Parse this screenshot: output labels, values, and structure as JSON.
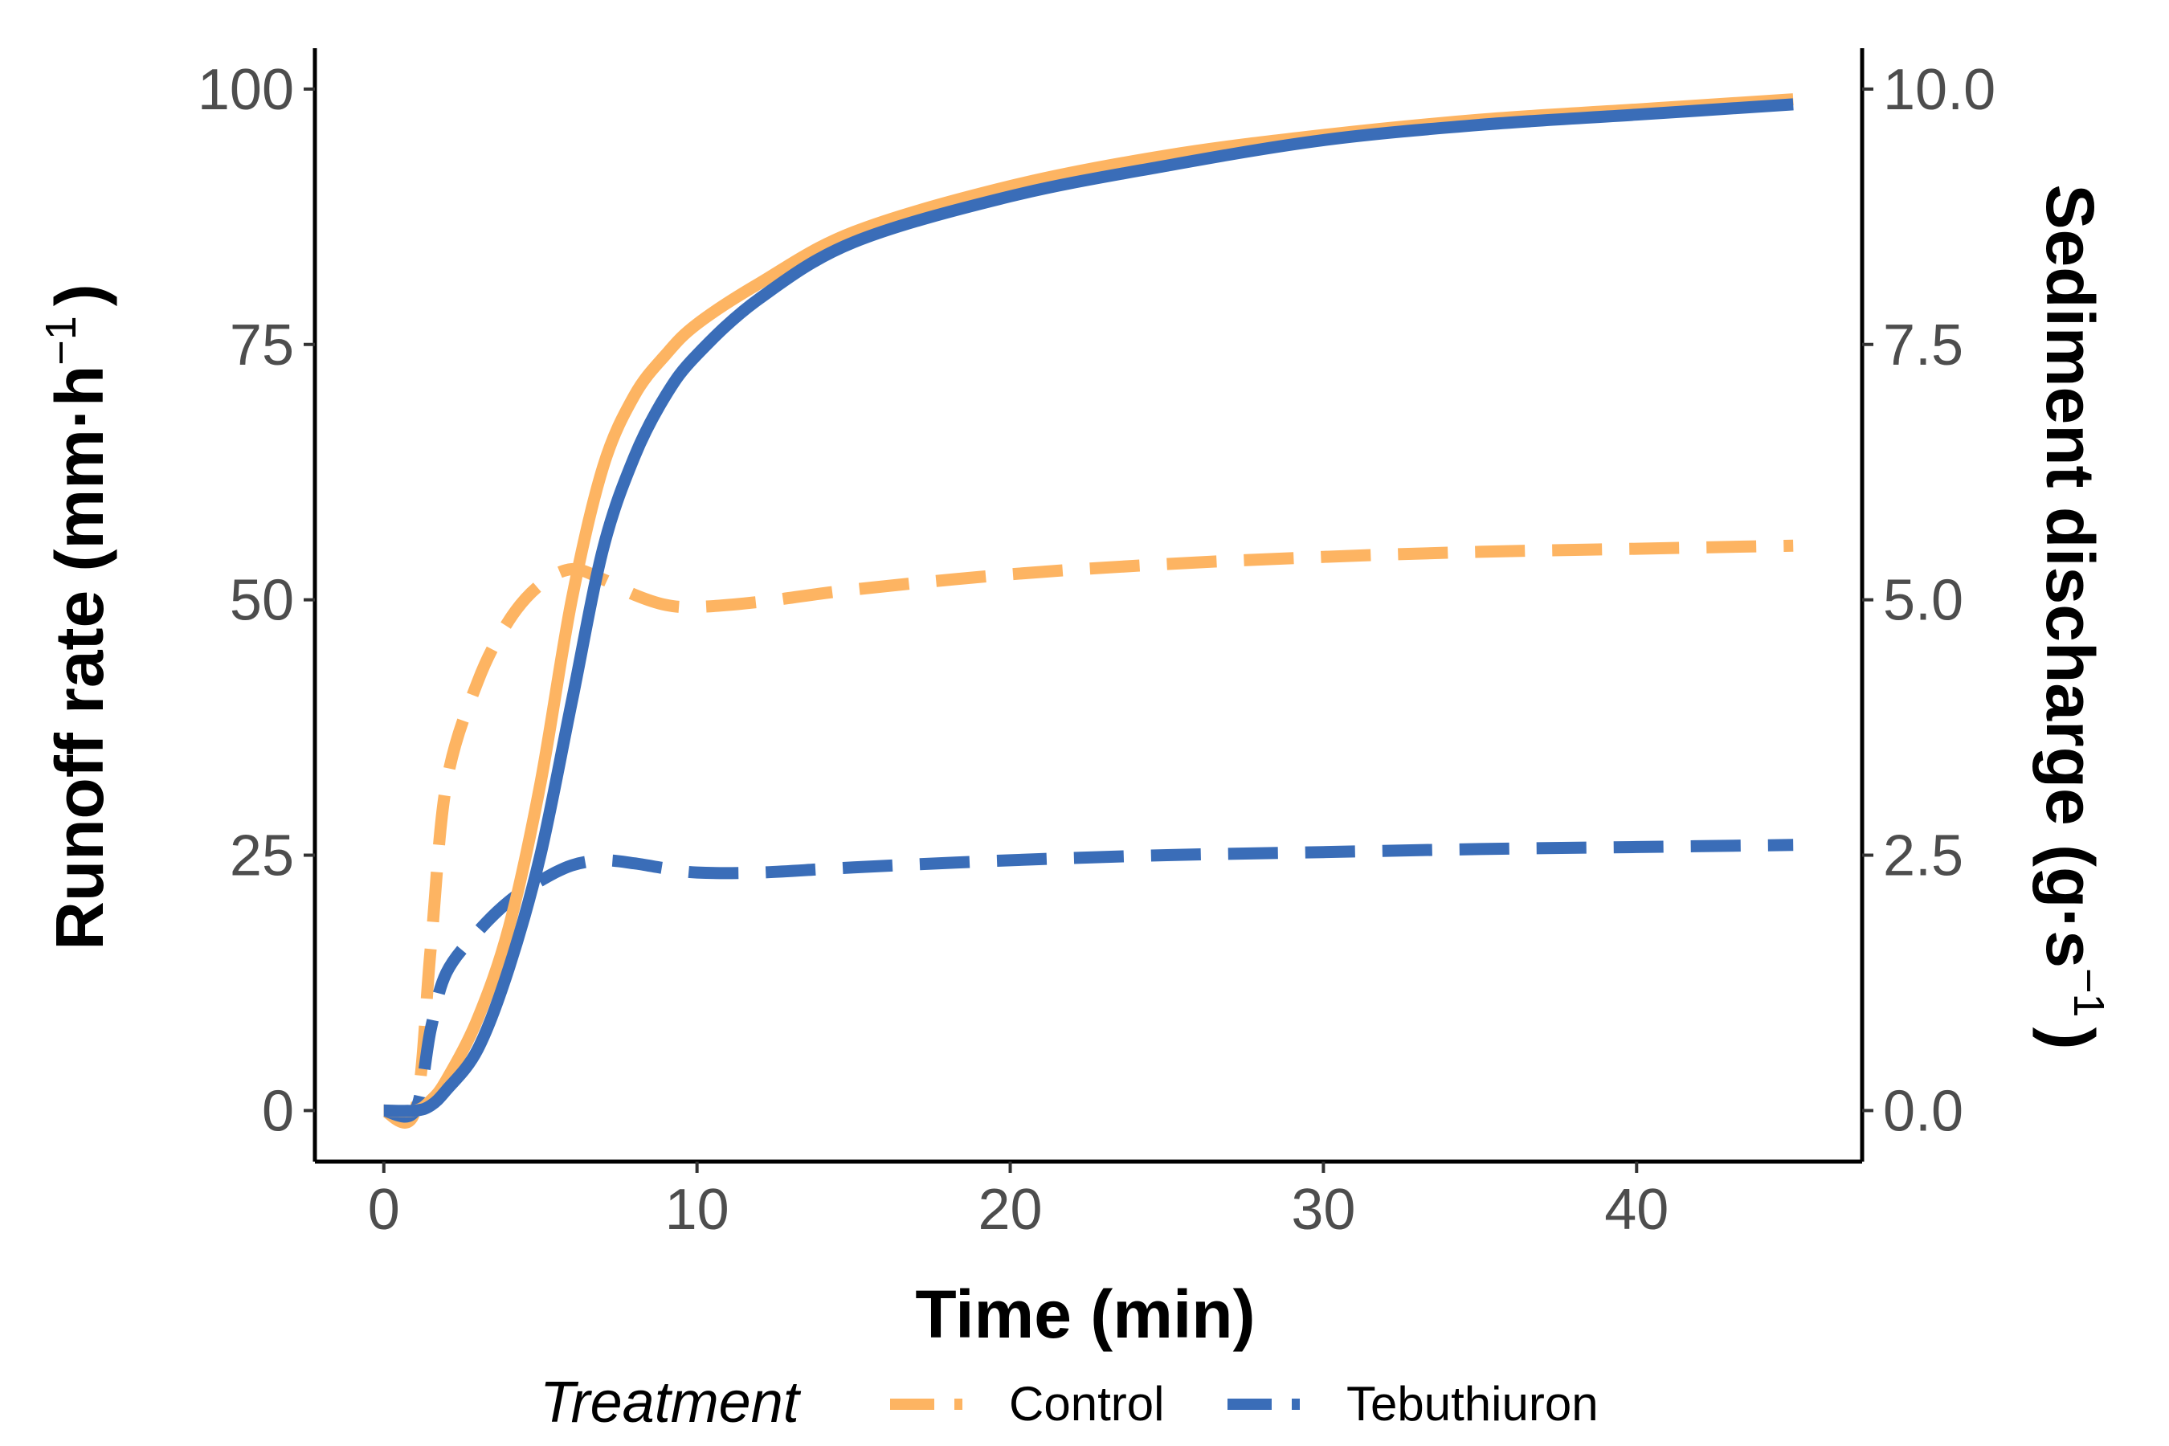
{
  "chart_data": {
    "type": "line",
    "xlabel": "Time (min)",
    "ylabel_left": {
      "main": "Runoff rate (mm·h",
      "sup": "−1",
      "close": ")"
    },
    "ylabel_right": {
      "main": "Sediment discharge (g·s",
      "sup": "−1",
      "close": ")"
    },
    "xlim": [
      -2.2,
      47.2
    ],
    "ylim_left": [
      -5,
      104
    ],
    "ylim_right": [
      -0.5,
      10.4
    ],
    "x_ticks": [
      0,
      10,
      20,
      30,
      40
    ],
    "y_left_ticks": [
      0,
      25,
      50,
      75,
      100
    ],
    "y_right_ticks": [
      0,
      2.5,
      5,
      7.5,
      10
    ],
    "y_right_tick_labels": [
      "0.0",
      "2.5",
      "5.0",
      "7.5",
      "10.0"
    ],
    "grid": false,
    "legend": {
      "title": "Treatment",
      "position": "bottom",
      "entries": [
        {
          "label": "Control",
          "color": "#FDB462"
        },
        {
          "label": "Tebuthiuron",
          "color": "#3A6DB8"
        }
      ]
    },
    "series": [
      {
        "name": "Control",
        "measure": "Runoff rate",
        "axis": "left",
        "style": "solid",
        "color": "#FDB462",
        "x": [
          0,
          1,
          1.5,
          2,
          3,
          4,
          5,
          6,
          7,
          8,
          9,
          10,
          12,
          15,
          20,
          25,
          30,
          35,
          40,
          45
        ],
        "y": [
          0,
          0,
          1,
          3,
          9,
          18,
          32,
          50,
          63,
          70,
          74,
          77,
          81,
          86,
          90.5,
          93.5,
          95.5,
          97,
          98,
          99
        ]
      },
      {
        "name": "Tebuthiuron",
        "measure": "Runoff rate",
        "axis": "left",
        "style": "solid",
        "color": "#3A6DB8",
        "x": [
          0,
          1,
          1.5,
          2,
          3,
          4,
          5,
          6,
          7,
          8,
          9,
          10,
          12,
          15,
          20,
          25,
          30,
          35,
          40,
          45
        ],
        "y": [
          0,
          0,
          0.5,
          2,
          6,
          14,
          25,
          40,
          55,
          64,
          70,
          74,
          79.5,
          85,
          89.5,
          92.5,
          95,
          96.5,
          97.5,
          98.5
        ]
      },
      {
        "name": "Control",
        "measure": "Sediment discharge",
        "axis": "right",
        "style": "dashed",
        "color": "#FDB462",
        "x": [
          0,
          1,
          1.5,
          2,
          3,
          4,
          5,
          6,
          7,
          8,
          9,
          10,
          12,
          15,
          20,
          25,
          30,
          35,
          40,
          45
        ],
        "y": [
          0,
          0,
          1.6,
          3.2,
          4.2,
          4.8,
          5.15,
          5.3,
          5.2,
          5.05,
          4.95,
          4.93,
          4.98,
          5.1,
          5.25,
          5.35,
          5.42,
          5.47,
          5.5,
          5.53
        ]
      },
      {
        "name": "Tebuthiuron",
        "measure": "Sediment discharge",
        "axis": "right",
        "style": "dashed",
        "color": "#3A6DB8",
        "x": [
          0,
          1,
          1.5,
          2,
          3,
          4,
          5,
          6,
          7,
          8,
          9,
          10,
          12,
          15,
          20,
          25,
          30,
          35,
          40,
          45
        ],
        "y": [
          0,
          0,
          0.8,
          1.35,
          1.75,
          2.05,
          2.25,
          2.4,
          2.45,
          2.42,
          2.37,
          2.33,
          2.33,
          2.38,
          2.45,
          2.5,
          2.53,
          2.56,
          2.58,
          2.6
        ]
      }
    ]
  }
}
